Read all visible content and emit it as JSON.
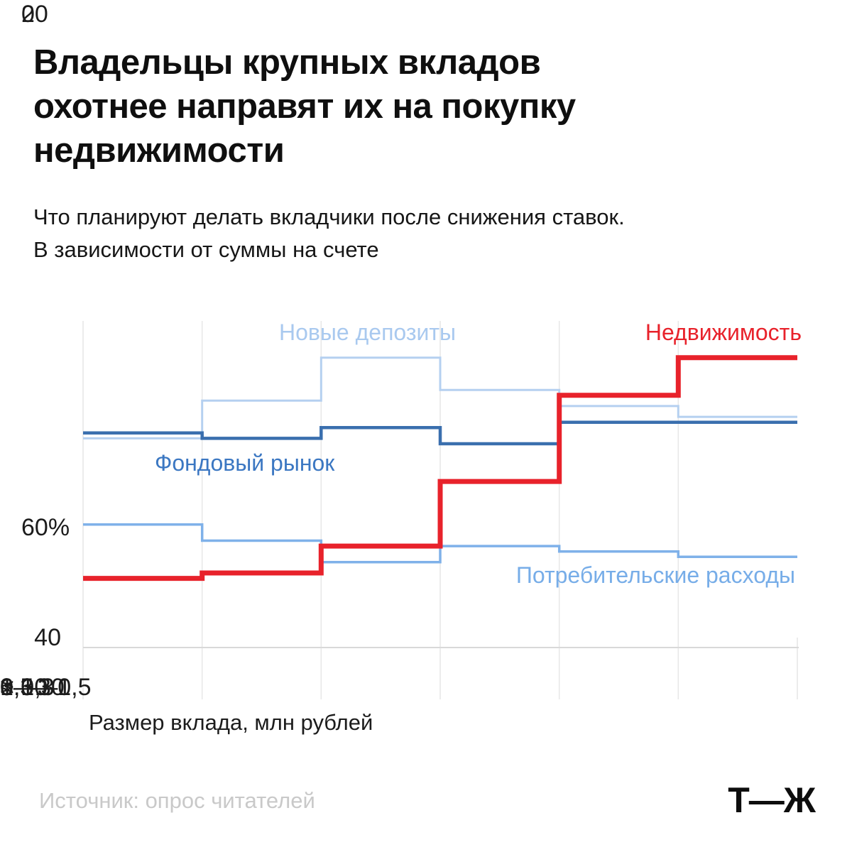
{
  "header": {
    "title_lines": [
      "Владельцы крупных вкладов",
      "охотнее направят их на покупку",
      "недвижимости"
    ],
    "subtitle_lines": [
      "Что планируют делать вкладчики после снижения ставок.",
      "В зависимости от суммы на счете"
    ]
  },
  "chart_data": {
    "type": "line",
    "subtype": "step",
    "title": "Владельцы крупных вкладов охотнее направят их на покупку недвижимости",
    "categories": [
      "< 0,3",
      "0,3—0,5",
      "0,5—1",
      "1—3",
      "3—10",
      "> 10"
    ],
    "series": [
      {
        "name": "Новые депозиты",
        "color": "#b5d0f0",
        "values": [
          37,
          44,
          52,
          46,
          43,
          41
        ]
      },
      {
        "name": "Потребительские расходы",
        "color": "#7fb1e9",
        "values": [
          21,
          18,
          14,
          17,
          16,
          15
        ]
      },
      {
        "name": "Фондовый рынок",
        "color": "#3a6fae",
        "values": [
          38,
          37,
          39,
          36,
          40,
          40
        ]
      },
      {
        "name": "Недвижимость",
        "color": "#e8222b",
        "values": [
          11,
          12,
          17,
          29,
          45,
          52
        ]
      }
    ],
    "label_colors": {
      "Новые депозиты": "#a9c9ef",
      "Потребительские расходы": "#77ade8",
      "Фондовый рынок": "#3b77c2",
      "Недвижимость": "#e8222b"
    },
    "xlabel": "Размер вклада, млн рублей",
    "ylabel": "%",
    "ylim": [
      0,
      60
    ],
    "yticks": [
      "60%",
      "40",
      "20",
      "0"
    ],
    "grid": "vertical",
    "grid_color": "#e8e8e8",
    "axis_line_color": "#d9d9d9",
    "legend_position": "inline-labels"
  },
  "axes": {
    "y_labels": [
      "60%",
      "40",
      "20",
      "0"
    ],
    "x_labels": [
      "< 0,3",
      "0,3—0,5",
      "0,5—1",
      "1—3",
      "3—10",
      "> 10"
    ],
    "x_title": "Размер вклада, млн рублей"
  },
  "footer": {
    "source": "Источник: опрос читателей",
    "logo": "Т—Ж"
  }
}
